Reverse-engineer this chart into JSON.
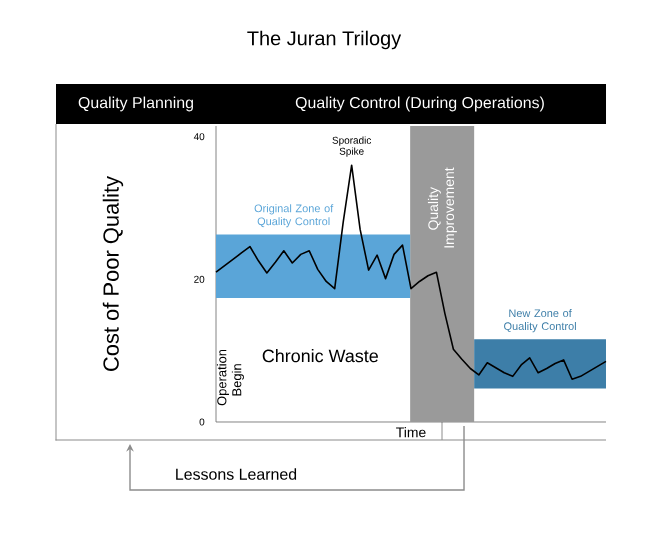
{
  "chart_data": {
    "type": "line",
    "title": "The Juran Trilogy",
    "xlabel": "Time",
    "ylabel": "Cost of Poor Quality",
    "categories": [
      null,
      null,
      null,
      null,
      null,
      null,
      null,
      null,
      null,
      null,
      null,
      null,
      null,
      null,
      null,
      null,
      null,
      null,
      null,
      null,
      null,
      null,
      null,
      null,
      null,
      null,
      null,
      null,
      null,
      null,
      null,
      null,
      null,
      null,
      null,
      null,
      null,
      null,
      null,
      null,
      null,
      null,
      null,
      null,
      null,
      null,
      null
    ],
    "values": [
      21.0,
      21.9,
      22.8,
      23.7,
      24.6,
      22.6,
      20.9,
      22.4,
      24.0,
      22.3,
      23.5,
      24.0,
      21.4,
      19.7,
      18.7,
      28,
      36.0,
      27,
      21.3,
      23.4,
      20.1,
      23.5,
      24.8,
      18.7,
      19.7,
      20.5,
      21.0,
      15.2,
      10.2,
      8.8,
      7.5,
      6.6,
      8.3,
      7.6,
      6.9,
      6.4,
      8.0,
      9.0,
      6.9,
      7.5,
      8.2,
      8.7,
      6.0,
      6.4,
      7.1,
      7.8,
      8.5
    ],
    "color": "#000000",
    "marker": "none",
    "line_style": "solid",
    "ylim": [
      0,
      41.5
    ],
    "yticks": [
      0,
      20,
      40
    ],
    "tick_labels": "y",
    "bands": [
      {
        "axis": "y",
        "from": 17.4,
        "to": 26.3,
        "label": "Original Zone of Quality Control",
        "color": "#5aa5d8"
      },
      {
        "axis": "y",
        "from": 4.7,
        "to": 11.6,
        "label": "New Zone of Quality Control",
        "color": "#3d7ea8"
      }
    ],
    "annotations": [
      "Quality Planning",
      "Quality Control (During Operations)",
      "Sporadic Spike",
      "Chronic Waste",
      "Operation Begin",
      "Quality Improvement",
      "Lessons Learned"
    ]
  }
}
